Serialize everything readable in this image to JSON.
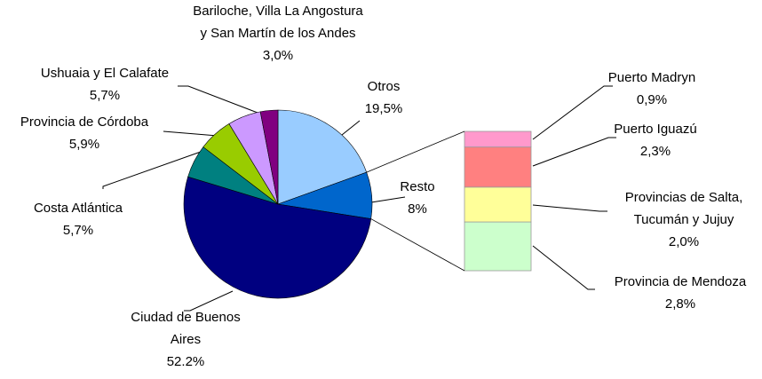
{
  "chart_data": {
    "type": "pie",
    "categories": [
      "Otros",
      "Resto",
      "Ciudad de Buenos Aires",
      "Costa Atlántica",
      "Provincia de Córdoba",
      "Ushuaia y El Calafate",
      "Bariloche, Villa La Angostura y San Martín de los Andes"
    ],
    "values": [
      19.5,
      8,
      52.2,
      5.7,
      5.9,
      5.7,
      3.0
    ],
    "value_labels": [
      "19,5%",
      "8%",
      "52.2%",
      "5,7%",
      "5,9%",
      "5,7%",
      "3,0%"
    ],
    "colors": [
      "#99ccff",
      "#0066cc",
      "#000080",
      "#008080",
      "#99cc00",
      "#cc99ff",
      "#800080"
    ],
    "breakdown": {
      "categories": [
        "Provincia de Mendoza",
        "Provincias de Salta, Tucumán y Jujuy",
        "Puerto Iguazú",
        "Puerto Madryn"
      ],
      "values": [
        2.8,
        2.0,
        2.3,
        0.9
      ],
      "value_labels": [
        "2,8%",
        "2,0%",
        "2,3%",
        "0,9%"
      ],
      "colors": [
        "#ccffcc",
        "#ffff99",
        "#ff8080",
        "#ff99cc"
      ]
    }
  }
}
